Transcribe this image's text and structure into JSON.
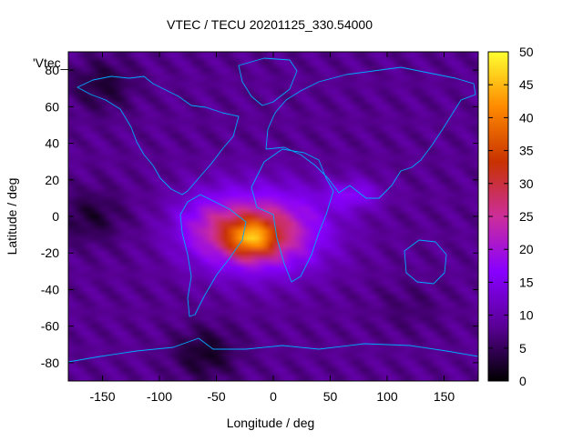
{
  "chart_data": {
    "type": "heatmap",
    "title": "VTEC / TECU 20201125_330.54000",
    "series_label": "'Vtec_",
    "xlabel": "Longitude / deg",
    "ylabel": "Latitude / deg",
    "xlim": [
      -180,
      180
    ],
    "ylim": [
      -90,
      90
    ],
    "x_ticks": [
      -150,
      -100,
      -50,
      0,
      50,
      100,
      150
    ],
    "y_ticks": [
      -80,
      -60,
      -40,
      -20,
      0,
      20,
      40,
      60,
      80
    ],
    "colorbar": {
      "range": [
        0,
        50
      ],
      "ticks": [
        0,
        5,
        10,
        15,
        20,
        25,
        30,
        35,
        40,
        45,
        50
      ],
      "palette": [
        "#000000",
        "#5a0096",
        "#8800ff",
        "#cc2e9a",
        "#c83200",
        "#ff8a00",
        "#ffff30"
      ]
    },
    "features": {
      "peak": {
        "lon": -20,
        "lat": -12,
        "value": 47
      },
      "equatorial_anomaly_center": {
        "lon": -10,
        "lat": -8
      },
      "background_value": 8,
      "lows": [
        {
          "lon": -160,
          "lat": 0,
          "value": 3
        },
        {
          "lon": -150,
          "lat": 72,
          "value": 3
        },
        {
          "lon": -60,
          "lat": -75,
          "value": 2
        },
        {
          "lon": 120,
          "lat": -50,
          "value": 6
        }
      ]
    }
  },
  "coastline_color": "#00aaff"
}
